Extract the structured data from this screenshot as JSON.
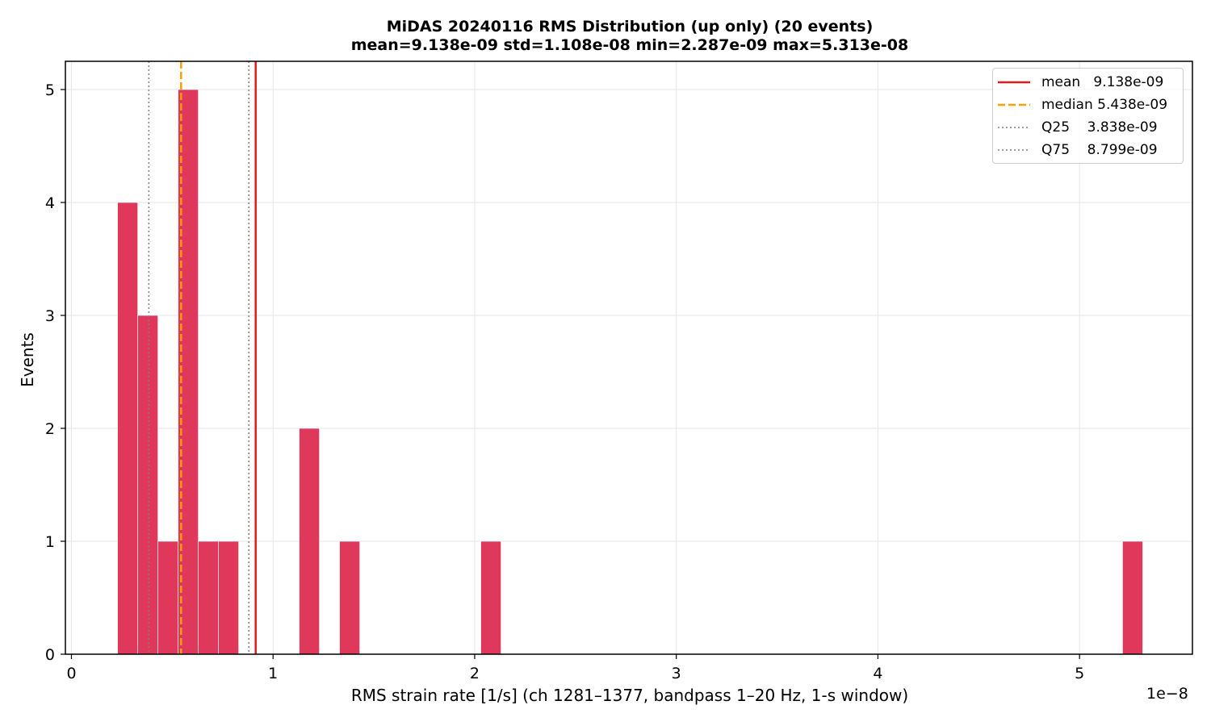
{
  "title_line1": "MiDAS 20240116  RMS Distribution  (up only)  (20 events)",
  "title_line2": "mean=9.138e-09  std=1.108e-08  min=2.287e-09  max=5.313e-08",
  "legend": [
    {
      "label": "mean   9.138e-09",
      "color": "#e31a1c",
      "style": "solid"
    },
    {
      "label": "median 5.438e-09",
      "color": "#ff9f00",
      "style": "dashed"
    },
    {
      "label": "Q25    3.838e-09",
      "color": "#808080",
      "style": "dotted"
    },
    {
      "label": "Q75    8.799e-09",
      "color": "#808080",
      "style": "dotted"
    }
  ],
  "chart_data": {
    "type": "bar",
    "title": "MiDAS 20240116  RMS Distribution  (up only)  (20 events)",
    "subtitle": "mean=9.138e-09  std=1.108e-08  min=2.287e-09  max=5.313e-08",
    "xlabel": "RMS strain rate [1/s]  (ch 1281–1377, bandpass 1–20 Hz, 1-s window)",
    "ylabel": "Events",
    "x_offset_label": "1e−8",
    "xlim": [
      -0.03,
      5.56
    ],
    "ylim": [
      0,
      5.25
    ],
    "xticks": [
      0,
      1,
      2,
      3,
      4,
      5
    ],
    "yticks": [
      0,
      1,
      2,
      3,
      4,
      5
    ],
    "bar_color": "#e0385a",
    "bins_left_edges": [
      0.2287,
      0.3288,
      0.4289,
      0.529,
      0.6291,
      0.7292,
      1.1296,
      1.3298,
      2.0305,
      5.2135
    ],
    "bin_width": 0.1001,
    "values": [
      4,
      3,
      1,
      5,
      1,
      1,
      2,
      1,
      1,
      1
    ],
    "reference_lines": [
      {
        "name": "mean",
        "x": 0.9138,
        "color": "#e31a1c",
        "style": "solid"
      },
      {
        "name": "median",
        "x": 0.5438,
        "color": "#ff9f00",
        "style": "dashed"
      },
      {
        "name": "Q25",
        "x": 0.3838,
        "color": "#808080",
        "style": "dotted"
      },
      {
        "name": "Q75",
        "x": 0.8799,
        "color": "#808080",
        "style": "dotted"
      }
    ],
    "grid": true,
    "legend_position": "top-right"
  }
}
